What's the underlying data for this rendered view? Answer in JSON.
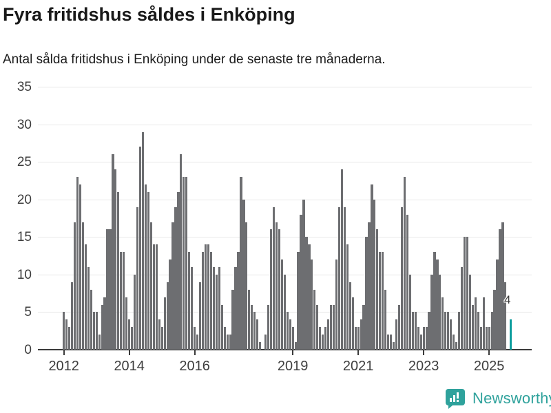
{
  "title": "Fyra fritidshus såldes i Enköping",
  "subtitle": "Antal sålda fritidshus i Enköping under de senaste tre månaderna.",
  "annotation": {
    "label": "4"
  },
  "logo": {
    "text": "Newsworthy"
  },
  "colors": {
    "bar": "#6d6e71",
    "highlight": "#0d9d9d",
    "grid": "#e7e7e7",
    "axis": "#3a3a3a",
    "title_text": "#191919",
    "tick_text": "#3d3d3d",
    "logo_teal": "#2fa29c"
  },
  "chart_data": {
    "type": "bar",
    "title": "Fyra fritidshus såldes i Enköping",
    "subtitle": "Antal sålda fritidshus i Enköping under de senaste tre månaderna.",
    "x_start_month": "2012-01",
    "x_end_month": "2025-09",
    "frequency": "monthly",
    "values": [
      5,
      4,
      3,
      9,
      17,
      23,
      22,
      17,
      14,
      11,
      8,
      5,
      5,
      2,
      6,
      7,
      16,
      16,
      26,
      24,
      21,
      13,
      13,
      7,
      4,
      3,
      10,
      19,
      27,
      29,
      22,
      21,
      17,
      14,
      14,
      4,
      3,
      7,
      9,
      12,
      17,
      19,
      21,
      26,
      23,
      23,
      13,
      11,
      3,
      2,
      9,
      13,
      14,
      14,
      13,
      11,
      10,
      11,
      6,
      3,
      2,
      2,
      8,
      11,
      13,
      23,
      20,
      17,
      8,
      6,
      5,
      4,
      1,
      0,
      2,
      6,
      16,
      19,
      17,
      16,
      12,
      10,
      5,
      4,
      3,
      1,
      13,
      18,
      20,
      15,
      14,
      12,
      8,
      6,
      3,
      2,
      3,
      4,
      6,
      6,
      12,
      19,
      24,
      19,
      14,
      9,
      7,
      3,
      3,
      4,
      6,
      15,
      17,
      22,
      20,
      16,
      13,
      13,
      8,
      2,
      2,
      1,
      4,
      6,
      19,
      23,
      18,
      10,
      5,
      5,
      3,
      2,
      3,
      3,
      5,
      10,
      13,
      12,
      10,
      7,
      5,
      5,
      4,
      2,
      1,
      5,
      11,
      15,
      15,
      10,
      6,
      7,
      5,
      3,
      7,
      3,
      3,
      5,
      8,
      12,
      16,
      17,
      9,
      0,
      4
    ],
    "highlight_index": 164,
    "highlight_value_label": "4",
    "y_ticks": [
      0,
      5,
      10,
      15,
      20,
      25,
      30,
      35
    ],
    "x_ticks": [
      {
        "label": "2012",
        "month_index": 0
      },
      {
        "label": "2014",
        "month_index": 24
      },
      {
        "label": "2016",
        "month_index": 48
      },
      {
        "label": "2019",
        "month_index": 84
      },
      {
        "label": "2021",
        "month_index": 108
      },
      {
        "label": "2023",
        "month_index": 132
      },
      {
        "label": "2025",
        "month_index": 156
      }
    ],
    "ylim": [
      0,
      35
    ],
    "grid": true,
    "legend_position": "none",
    "xlabel": "",
    "ylabel": ""
  }
}
